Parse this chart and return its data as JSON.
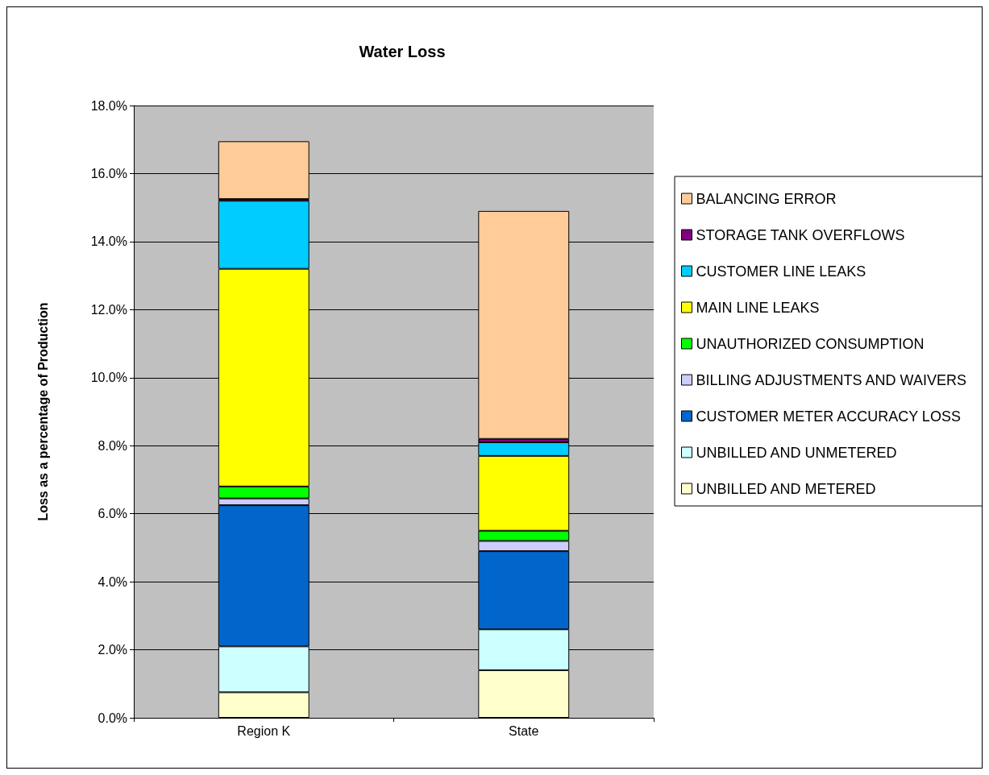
{
  "chart_data": {
    "type": "bar",
    "title": "Water Loss",
    "ylabel": "Loss as a percentage of Production",
    "categories": [
      "Region K",
      "State"
    ],
    "stacked": true,
    "grid": "y",
    "legend": "right",
    "ylim": [
      0,
      18
    ],
    "yticks": [
      {
        "value": 0,
        "label": "0.0%"
      },
      {
        "value": 2,
        "label": "2.0%"
      },
      {
        "value": 4,
        "label": "4.0%"
      },
      {
        "value": 6,
        "label": "6.0%"
      },
      {
        "value": 8,
        "label": "8.0%"
      },
      {
        "value": 10,
        "label": "10.0%"
      },
      {
        "value": 12,
        "label": "12.0%"
      },
      {
        "value": 14,
        "label": "14.0%"
      },
      {
        "value": 16,
        "label": "16.0%"
      },
      {
        "value": 18,
        "label": "18.0%"
      }
    ],
    "series": [
      {
        "name": "UNBILLED AND METERED",
        "color": "#ffffcc",
        "values": [
          0.75,
          1.4
        ]
      },
      {
        "name": "UNBILLED AND UNMETERED",
        "color": "#ccffff",
        "values": [
          1.35,
          1.2
        ]
      },
      {
        "name": "CUSTOMER METER ACCURACY LOSS",
        "color": "#0066cc",
        "values": [
          4.15,
          2.3
        ]
      },
      {
        "name": "BILLING ADJUSTMENTS AND WAIVERS",
        "color": "#ccccff",
        "values": [
          0.2,
          0.3
        ]
      },
      {
        "name": "UNAUTHORIZED CONSUMPTION",
        "color": "#00ff00",
        "values": [
          0.35,
          0.3
        ]
      },
      {
        "name": "MAIN LINE LEAKS",
        "color": "#ffff00",
        "values": [
          6.4,
          2.2
        ]
      },
      {
        "name": "CUSTOMER LINE LEAKS",
        "color": "#00ccff",
        "values": [
          2.0,
          0.4
        ]
      },
      {
        "name": "STORAGE TANK OVERFLOWS",
        "color": "#800080",
        "values": [
          0.05,
          0.1
        ]
      },
      {
        "name": "BALANCING ERROR",
        "color": "#ffcc99",
        "values": [
          1.7,
          6.7
        ]
      }
    ]
  }
}
